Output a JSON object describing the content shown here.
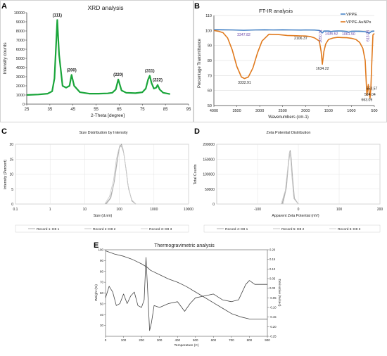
{
  "panels": {
    "A": {
      "letter": "A"
    },
    "B": {
      "letter": "B"
    },
    "C": {
      "letter": "C"
    },
    "D": {
      "letter": "D"
    },
    "E": {
      "letter": "E"
    }
  },
  "colors": {
    "xrd": "#1aa53a",
    "vppe": "#4a86c8",
    "vppe_aunps": "#e07a1e",
    "grey": "#888888",
    "purple": "#6b46a8"
  },
  "chart_data": [
    {
      "id": "A",
      "type": "line",
      "title": "XRD analysis",
      "xlabel": "2-Theta [degree]",
      "ylabel": "Intensity counts",
      "xlim": [
        25,
        95
      ],
      "ylim": [
        0,
        10000
      ],
      "xticks": [
        "25",
        "35",
        "45",
        "55",
        "65",
        "75",
        "85",
        "95"
      ],
      "yticks": [
        "0",
        "1000",
        "2000",
        "3000",
        "4000",
        "5000",
        "6000",
        "7000",
        "8000",
        "9000",
        "10000"
      ],
      "series": [
        {
          "name": "",
          "x": [
            25,
            30,
            34,
            36,
            37,
            38.2,
            39,
            40.5,
            42,
            43.5,
            44.4,
            45.5,
            48,
            52,
            56,
            60,
            62,
            63.5,
            64.6,
            66,
            68,
            72,
            75,
            76.5,
            77.5,
            78.2,
            79,
            80,
            81,
            81.6,
            82.5,
            84,
            86,
            87
          ],
          "y": [
            1000,
            1050,
            1150,
            1400,
            2800,
            9200,
            5400,
            2000,
            1800,
            2000,
            3200,
            2000,
            1300,
            1150,
            1150,
            1180,
            1250,
            1600,
            2700,
            1500,
            1250,
            1200,
            1300,
            1700,
            2700,
            3100,
            2300,
            1700,
            1800,
            2100,
            1600,
            1250,
            1150,
            1100
          ]
        }
      ],
      "annotations": [
        {
          "label": "(111)",
          "x": 38.2,
          "y": 9200
        },
        {
          "label": "(200)",
          "x": 44.4,
          "y": 3200
        },
        {
          "label": "(220)",
          "x": 64.6,
          "y": 2700
        },
        {
          "label": "(311)",
          "x": 78.2,
          "y": 3100
        },
        {
          "label": "(222)",
          "x": 81.6,
          "y": 2100
        }
      ]
    },
    {
      "id": "B",
      "type": "line",
      "title": "FT-IR analysis",
      "xlabel": "Wavenumbers (cm-1)",
      "ylabel": "Percentage Transmittance",
      "xlim": [
        4000,
        500
      ],
      "ylim": [
        50,
        110
      ],
      "xticks": [
        "4000",
        "3500",
        "3000",
        "2500",
        "2000",
        "1500",
        "1000",
        "500"
      ],
      "yticks": [
        "50",
        "60",
        "70",
        "80",
        "90",
        "100",
        "110"
      ],
      "series": [
        {
          "name": "VPPE",
          "x": [
            4000,
            3800,
            3600,
            3400,
            3347.82,
            3300,
            3100,
            2900,
            2700,
            2500,
            2300,
            2106.37,
            2000,
            1800,
            1700,
            1630,
            1600,
            1500,
            1436.62,
            1400,
            1300,
            1200,
            1100,
            1061.5,
            1000,
            900,
            800,
            700,
            613.18,
            560,
            500
          ],
          "y": [
            100.6,
            100.5,
            100.4,
            100.2,
            100.1,
            100.2,
            100.4,
            100.5,
            100.4,
            100.5,
            100.4,
            100.3,
            100.4,
            100.3,
            100,
            98.4,
            99.6,
            99.6,
            99.2,
            99.5,
            99.7,
            99.6,
            99.3,
            98.9,
            99.4,
            99.5,
            99.4,
            99.2,
            98.2,
            99.4,
            99.6
          ]
        },
        {
          "name": "VPPE-AuNPs",
          "x": [
            4000,
            3900,
            3800,
            3700,
            3600,
            3500,
            3400,
            3332.91,
            3250,
            3150,
            3050,
            2950,
            2800,
            2600,
            2400,
            2200,
            2106.37,
            2000,
            1900,
            1800,
            1700,
            1660,
            1634.22,
            1600,
            1560,
            1500,
            1400,
            1300,
            1200,
            1100,
            1000,
            900,
            820,
            750,
            700,
            663.09,
            630,
            610,
            594.04,
            575,
            553.57,
            530,
            500
          ],
          "y": [
            100,
            99.5,
            98.5,
            95,
            87,
            76,
            69,
            68,
            69,
            75,
            85,
            93,
            97.5,
            97.3,
            96.7,
            96.5,
            96.4,
            96.3,
            96,
            95,
            93,
            86,
            77.5,
            86,
            91,
            94,
            95,
            95.4,
            95.3,
            95.2,
            94.8,
            94,
            92,
            88,
            80,
            57,
            64,
            58,
            55,
            62,
            80,
            97,
            98
          ]
        }
      ],
      "annotations": [
        {
          "label": "3347.82",
          "x": 3347.82,
          "y": 96.5,
          "series": "VPPE"
        },
        {
          "label": "2106.37",
          "x": 2106.37,
          "y": 94,
          "series": "VPPE-AuNPs"
        },
        {
          "label": "1436.62",
          "x": 1436.62,
          "y": 97.2,
          "series": "VPPE"
        },
        {
          "label": "1061.50",
          "x": 1061.5,
          "y": 96.8,
          "series": "VPPE"
        },
        {
          "label": "1650.31",
          "x": 1650,
          "y": 96.2,
          "series": "VPPE"
        },
        {
          "label": "613.08",
          "x": 613,
          "y": 96.4,
          "series": "VPPE"
        },
        {
          "label": "3332.91",
          "x": 3332.91,
          "y": 64.5,
          "series": "VPPE-AuNPs"
        },
        {
          "label": "1634.22",
          "x": 1634.22,
          "y": 74,
          "series": "VPPE-AuNPs"
        },
        {
          "label": "663.09",
          "x": 663.09,
          "y": 53,
          "series": "VPPE-AuNPs"
        },
        {
          "label": "553.57",
          "x": 553.57,
          "y": 60.5,
          "series": "VPPE-AuNPs"
        },
        {
          "label": "594.04",
          "x": 594.04,
          "y": 56.5,
          "series": "VPPE-AuNPs"
        }
      ],
      "legend": "top-right"
    },
    {
      "id": "C",
      "type": "line",
      "title": "Size Distribution by Intensity",
      "xlabel": "Size (d.nm)",
      "ylabel": "Intensity (Percent)",
      "xscale": "log",
      "xlim": [
        0.1,
        10000
      ],
      "ylim": [
        0,
        20
      ],
      "xticks": [
        "0.1",
        "1",
        "10",
        "100",
        "1000",
        "10000"
      ],
      "yticks": [
        "0",
        "5",
        "10",
        "15",
        "20"
      ],
      "series": [
        {
          "name": "Record 1: D8 1",
          "x": [
            40,
            55,
            70,
            85,
            100,
            115,
            130,
            150,
            180,
            230,
            300
          ],
          "y": [
            0,
            2,
            7,
            14,
            19,
            20,
            18,
            13,
            6,
            1,
            0
          ]
        },
        {
          "name": "Record 2: D8 2",
          "x": [
            42,
            57,
            72,
            88,
            103,
            118,
            135,
            155,
            185,
            235,
            300
          ],
          "y": [
            0,
            2,
            7.5,
            14.5,
            19.5,
            19,
            17,
            12,
            5,
            1,
            0
          ]
        },
        {
          "name": "Record 3: D8 3",
          "x": [
            38,
            52,
            68,
            82,
            97,
            112,
            128,
            148,
            175,
            225,
            300
          ],
          "y": [
            0,
            2.5,
            8,
            15,
            18.5,
            19.5,
            18.5,
            13.5,
            6.5,
            1.5,
            0
          ]
        }
      ],
      "legend": "bottom"
    },
    {
      "id": "D",
      "type": "line",
      "title": "Zeta Potential Distribution",
      "xlabel": "Apparent Zeta Potential (mV)",
      "ylabel": "Total Counts",
      "xlim": [
        -200,
        200
      ],
      "ylim": [
        0,
        200000
      ],
      "xticks": [
        "-100",
        "0",
        "100",
        "200"
      ],
      "yticks": [
        "0",
        "50000",
        "100000",
        "150000",
        "200000"
      ],
      "series": [
        {
          "name": "Record 4: D8 1",
          "x": [
            -40,
            -30,
            -25,
            -22,
            -20,
            -18,
            -15,
            -10,
            0
          ],
          "y": [
            0,
            50000,
            130000,
            170000,
            180000,
            160000,
            100000,
            20000,
            0
          ]
        },
        {
          "name": "Record 5: D8 2",
          "x": [
            -38,
            -29,
            -24,
            -21,
            -19,
            -17,
            -14,
            -9,
            0
          ],
          "y": [
            0,
            55000,
            135000,
            165000,
            172000,
            150000,
            90000,
            15000,
            0
          ]
        },
        {
          "name": "Record 6: D8 3",
          "x": [
            -42,
            -32,
            -26,
            -23,
            -21,
            -19,
            -16,
            -11,
            0
          ],
          "y": [
            0,
            45000,
            120000,
            160000,
            175000,
            155000,
            95000,
            18000,
            0
          ]
        }
      ],
      "legend": "bottom"
    },
    {
      "id": "E",
      "type": "line",
      "title": "Thermogravimetric analysis",
      "xlabel": "Temperature (C)",
      "ylabel": "Weight (%)",
      "y2label": "Derivative (%/sec)",
      "xlim": [
        0,
        900
      ],
      "ylim": [
        20,
        100
      ],
      "y2lim": [
        -0.25,
        0.2
      ],
      "xticks": [
        "0",
        "100",
        "200",
        "300",
        "400",
        "500",
        "600",
        "700",
        "800",
        "900"
      ],
      "yticks": [
        "30",
        "40",
        "50",
        "60",
        "70",
        "80",
        "90",
        "100"
      ],
      "y2ticks": [
        "-0.25",
        "-0.20",
        "-0.15",
        "-0.10",
        "-0.05",
        "0.00",
        "0.05",
        "0.10",
        "0.15",
        "0.20"
      ],
      "series": [
        {
          "name": "Weight",
          "axis": "left",
          "x": [
            0,
            50,
            100,
            150,
            200,
            230,
            250,
            300,
            350,
            400,
            450,
            500,
            550,
            600,
            650,
            700,
            750,
            800,
            850,
            900
          ],
          "y": [
            99,
            96,
            94,
            91,
            87,
            84,
            81,
            77,
            73,
            70,
            66,
            61,
            56,
            51,
            46,
            41,
            38,
            36,
            36,
            36
          ]
        },
        {
          "name": "Derivative",
          "axis": "right",
          "x": [
            0,
            20,
            40,
            60,
            80,
            100,
            120,
            140,
            160,
            180,
            200,
            215,
            225,
            235,
            245,
            255,
            270,
            300,
            350,
            400,
            440,
            470,
            500,
            550,
            600,
            650,
            700,
            740,
            760,
            780,
            800,
            830,
            860,
            900
          ],
          "y": [
            -0.05,
            0.01,
            -0.02,
            -0.09,
            -0.08,
            -0.03,
            -0.08,
            -0.04,
            -0.02,
            -0.09,
            -0.1,
            -0.06,
            0.16,
            -0.03,
            -0.22,
            -0.18,
            -0.09,
            -0.1,
            -0.08,
            -0.07,
            -0.12,
            -0.08,
            -0.05,
            -0.04,
            -0.03,
            -0.06,
            -0.07,
            -0.06,
            -0.02,
            0.02,
            0.04,
            0.02,
            0.02,
            0.02
          ]
        }
      ]
    }
  ]
}
